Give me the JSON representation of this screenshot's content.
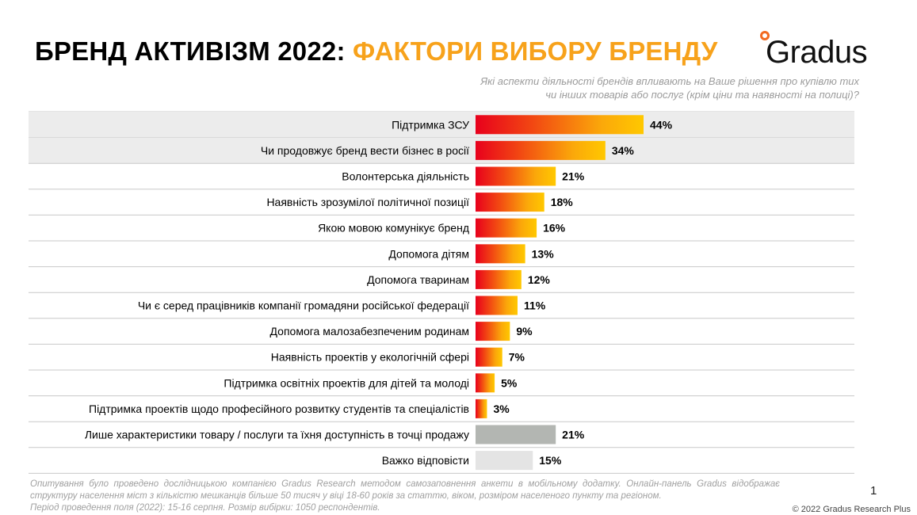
{
  "header": {
    "title_part1": "БРЕНД АКТИВІЗМ 2022:",
    "title_part2": "ФАКТОРИ ВИБОРУ БРЕНДУ",
    "logo_text": "Gradus"
  },
  "question": {
    "line1": "Які аспекти діяльності брендів впливають на Ваше рішення про купівлю тих",
    "line2": "чи інших товарів або послуг (крім ціни та наявності на полиці)?"
  },
  "chart_data": {
    "type": "bar",
    "orientation": "horizontal",
    "categories": [
      "Підтримка ЗСУ",
      "Чи продовжує бренд вести бізнес в росії",
      "Волонтерська діяльність",
      "Наявність зрозумілої політичної позиції",
      "Якою мовою комунікує бренд",
      "Допомога дітям",
      "Допомога тваринам",
      "Чи є серед працівників компанії громадяни російської федерації",
      "Допомога малозабезпеченим родинам",
      "Наявність проектів у екологічній сфері",
      "Підтримка освітніх проектів для дітей та молоді",
      "Підтримка проектів щодо професійного розвитку студентів та спеціалістів",
      "Лише характеристики товару / послуги та їхня доступність в точці продажу",
      "Важко відповісти"
    ],
    "values": [
      44,
      34,
      21,
      18,
      16,
      13,
      12,
      11,
      9,
      7,
      5,
      3,
      21,
      15
    ],
    "value_labels": [
      "44%",
      "34%",
      "21%",
      "18%",
      "16%",
      "13%",
      "12%",
      "11%",
      "9%",
      "7%",
      "5%",
      "3%",
      "21%",
      "15%"
    ],
    "highlighted_rows": [
      0,
      1
    ],
    "bar_styles": [
      "gradient",
      "gradient",
      "gradient",
      "gradient",
      "gradient",
      "gradient",
      "gradient",
      "gradient",
      "gradient",
      "gradient",
      "gradient",
      "gradient",
      "gray",
      "lightgray"
    ],
    "unit": "%",
    "xlim": [
      0,
      44
    ]
  },
  "colors": {
    "title_accent": "#f7a21b",
    "gradient_start": "#e8001c",
    "gradient_end": "#ffc800",
    "bar_gray": "#b3b6b2",
    "bar_lightgray": "#e4e4e4",
    "row_highlight": "#ececec",
    "divider": "#c8c8c8",
    "logo_dot": "#f26a21"
  },
  "footnote": {
    "line1": "Опитування було проведено дослідницькою компанією Gradus Research методом самозаповнення анкети в мобільному додатку. Онлайн-панель Gradus відображає структуру населення міст з кількістю мешканців більше 50 тисяч у віці 18-60 років за статтю, віком, розміром населеного пункту та регіоном.",
    "line2": "Період проведення поля (2022): 15-16 серпня. Розмір вибірки: 1050 респондентів."
  },
  "page_number": "1",
  "copyright": "© 2022 Gradus Research Plus"
}
